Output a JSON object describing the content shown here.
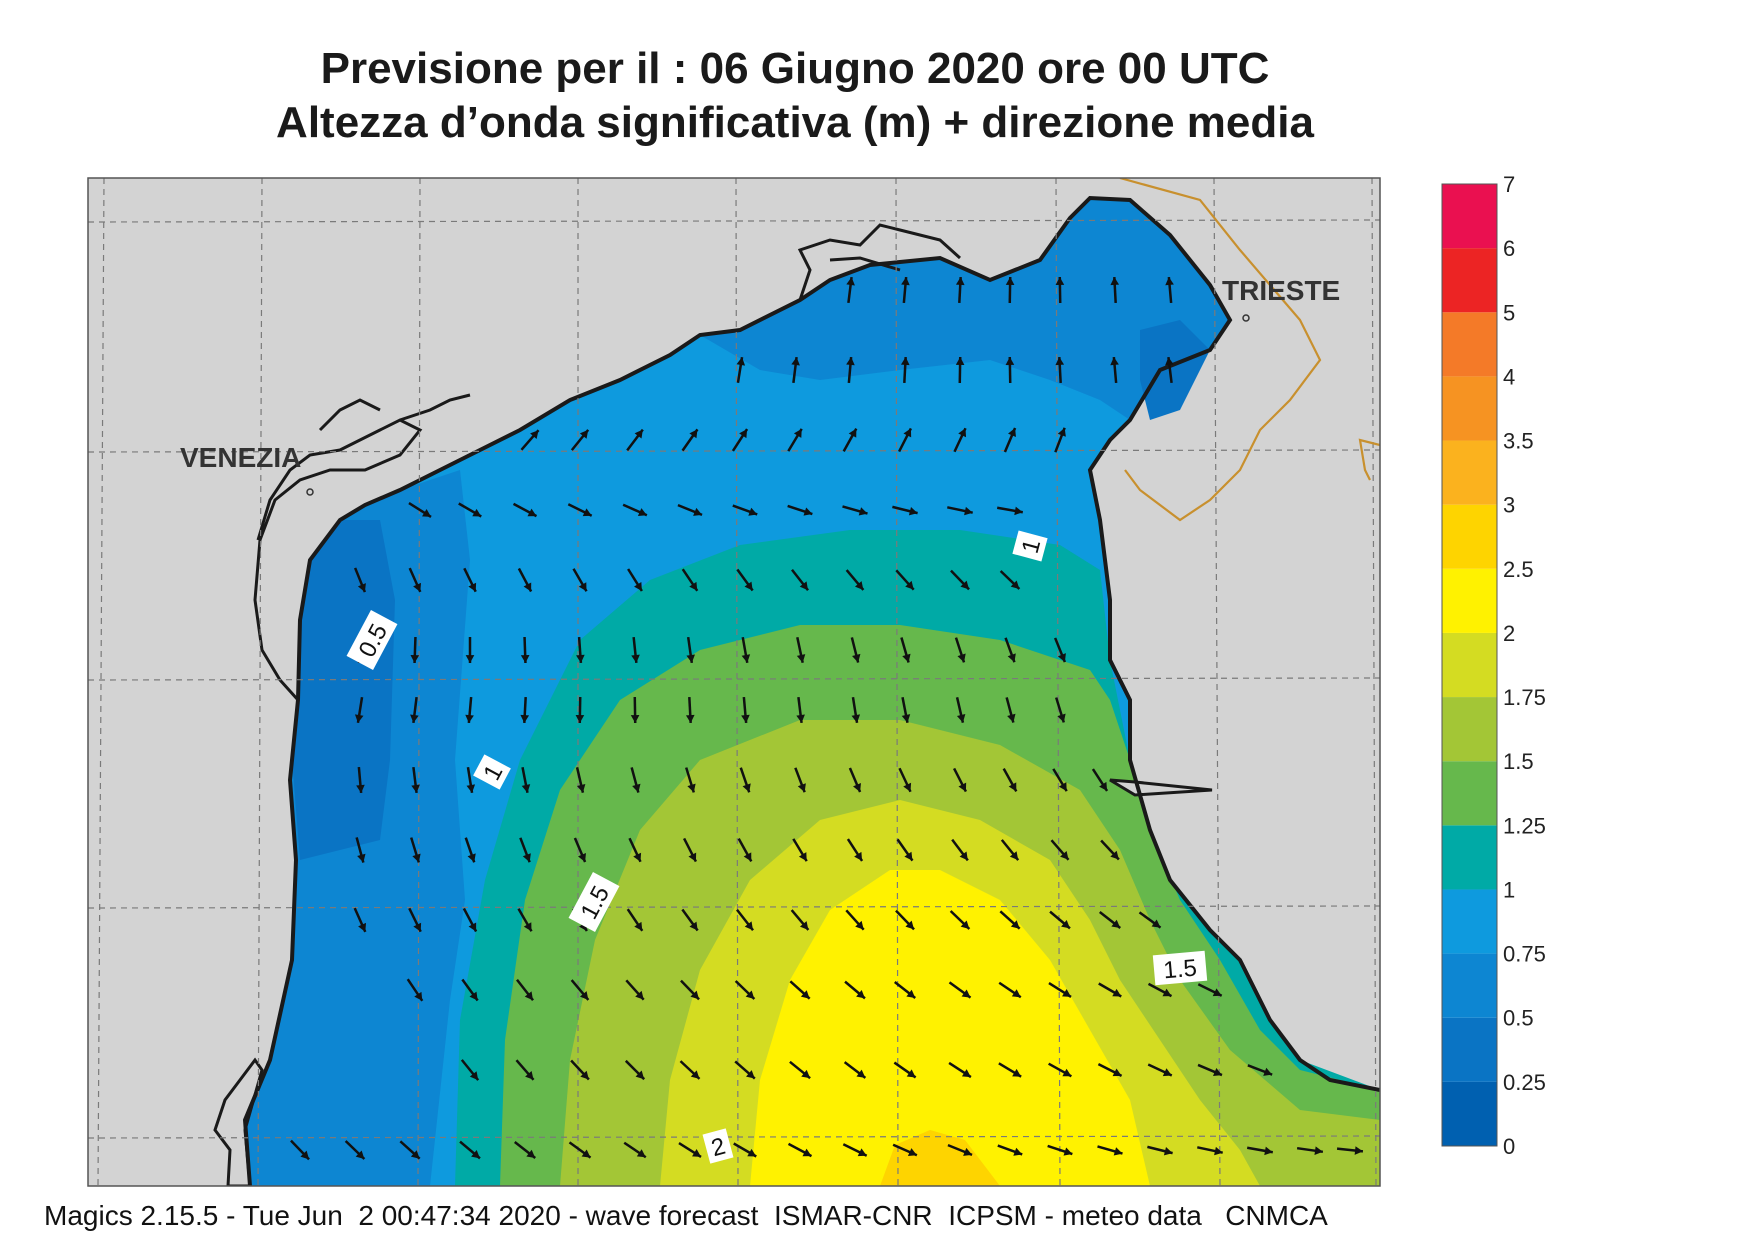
{
  "title_line1": "Previsione per il  :  06   Giugno  2020   ore 00 UTC",
  "title_line2": "Altezza d’onda significativa (m) + direzione media",
  "footer": "Magics 2.15.5 - Tue Jun  2 00:47:34 2020 - wave forecast  ISMAR-CNR  ICPSM - meteo data   CNMCA",
  "cities": [
    {
      "name": "VENEZIA"
    },
    {
      "name": "TRIESTE"
    }
  ],
  "contour_labels": [
    "0.5",
    "1",
    "1",
    "1.5",
    "1.5",
    "2"
  ],
  "legend": {
    "bins": [
      {
        "from": "0",
        "color": "#0060b0"
      },
      {
        "from": "0.25",
        "color": "#0a74c4"
      },
      {
        "from": "0.5",
        "color": "#0d86d2"
      },
      {
        "from": "0.75",
        "color": "#0e9ade"
      },
      {
        "from": "1",
        "color": "#00aaa6"
      },
      {
        "from": "1.25",
        "color": "#66b84c"
      },
      {
        "from": "1.5",
        "color": "#a3c636"
      },
      {
        "from": "1.75",
        "color": "#d4dc22"
      },
      {
        "from": "2",
        "color": "#fff200"
      },
      {
        "from": "2.5",
        "color": "#fed400"
      },
      {
        "from": "3",
        "color": "#fbb21e"
      },
      {
        "from": "3.5",
        "color": "#f69322"
      },
      {
        "from": "4",
        "color": "#f47a28"
      },
      {
        "from": "5",
        "color": "#ec2424"
      },
      {
        "from": "6",
        "color": "#ea1050"
      }
    ],
    "top_label": "7"
  },
  "colors": {
    "land": "#d3d3d3",
    "coast": "#1a1a1a",
    "border": "#c8902e",
    "arrow": "#111111",
    "grid": "#7a7a7a"
  }
}
